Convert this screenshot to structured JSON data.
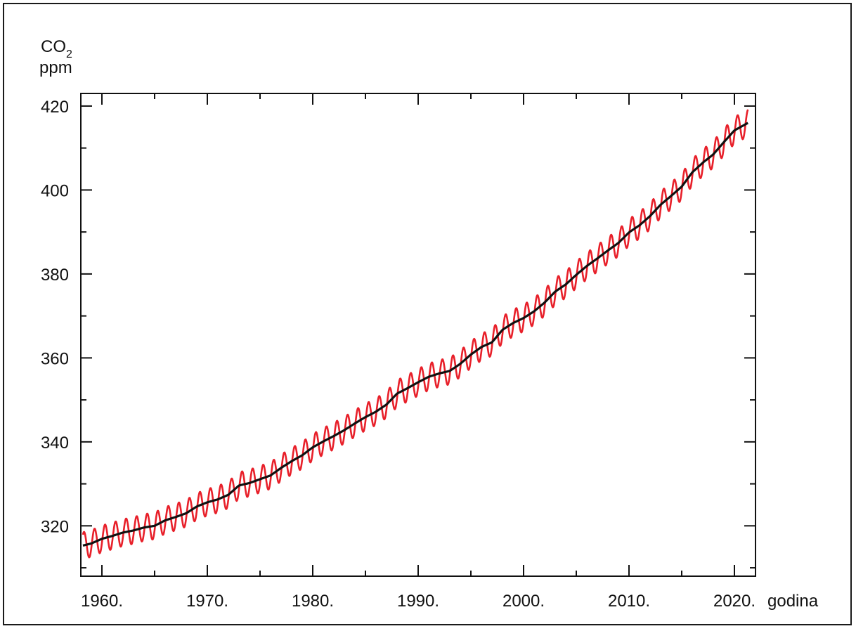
{
  "chart_data": {
    "type": "line",
    "title": "",
    "ylabel": "CO",
    "ylabel_subscript": "2",
    "yunit": "ppm",
    "xlabel": "godina",
    "xlim": [
      1958,
      2022
    ],
    "ylim": [
      308,
      423
    ],
    "x_ticks": [
      1960,
      1970,
      1980,
      1990,
      2000,
      2010,
      2020
    ],
    "x_tick_labels": [
      "1960.",
      "1970.",
      "1980.",
      "1990.",
      "2000.",
      "2010.",
      "2020."
    ],
    "y_ticks": [
      320,
      340,
      360,
      380,
      400,
      420
    ],
    "y_tick_labels": [
      "320",
      "340",
      "360",
      "380",
      "400",
      "420"
    ],
    "grid": false,
    "series": [
      {
        "role": "monthly",
        "color": "#e8202a",
        "seasonal_amplitude_ppm": 3.2,
        "x": [
          1958.2,
          1959,
          1960,
          1961,
          1962,
          1963,
          1964,
          1965,
          1966,
          1967,
          1968,
          1969,
          1970,
          1971,
          1972,
          1973,
          1974,
          1975,
          1976,
          1977,
          1978,
          1979,
          1980,
          1981,
          1982,
          1983,
          1984,
          1985,
          1986,
          1987,
          1988,
          1989,
          1990,
          1991,
          1992,
          1993,
          1994,
          1995,
          1996,
          1997,
          1998,
          1999,
          2000,
          2001,
          2002,
          2003,
          2004,
          2005,
          2006,
          2007,
          2008,
          2009,
          2010,
          2011,
          2012,
          2013,
          2014,
          2015,
          2016,
          2017,
          2018,
          2019,
          2020,
          2021.3
        ],
        "y": [
          315.3,
          315.8,
          316.9,
          317.6,
          318.4,
          318.9,
          319.6,
          320.0,
          321.3,
          322.1,
          323.0,
          324.6,
          325.6,
          326.3,
          327.4,
          329.6,
          330.2,
          331.1,
          332.0,
          333.8,
          335.4,
          336.8,
          338.7,
          340.1,
          341.4,
          342.8,
          344.4,
          345.9,
          347.2,
          348.9,
          351.5,
          352.8,
          354.2,
          355.5,
          356.3,
          356.9,
          358.6,
          360.8,
          362.6,
          363.7,
          366.7,
          368.3,
          369.5,
          371.1,
          373.2,
          375.8,
          377.5,
          379.8,
          381.9,
          383.7,
          385.6,
          387.4,
          389.9,
          391.6,
          393.8,
          396.5,
          398.6,
          400.8,
          404.2,
          406.5,
          408.5,
          411.4,
          414.2,
          416.0
        ]
      },
      {
        "role": "trend",
        "color": "#111111",
        "x": [
          1958.2,
          1959,
          1960,
          1961,
          1962,
          1963,
          1964,
          1965,
          1966,
          1967,
          1968,
          1969,
          1970,
          1971,
          1972,
          1973,
          1974,
          1975,
          1976,
          1977,
          1978,
          1979,
          1980,
          1981,
          1982,
          1983,
          1984,
          1985,
          1986,
          1987,
          1988,
          1989,
          1990,
          1991,
          1992,
          1993,
          1994,
          1995,
          1996,
          1997,
          1998,
          1999,
          2000,
          2001,
          2002,
          2003,
          2004,
          2005,
          2006,
          2007,
          2008,
          2009,
          2010,
          2011,
          2012,
          2013,
          2014,
          2015,
          2016,
          2017,
          2018,
          2019,
          2020,
          2021.3
        ],
        "y": [
          315.3,
          315.8,
          316.9,
          317.6,
          318.4,
          318.9,
          319.6,
          320.0,
          321.3,
          322.1,
          323.0,
          324.6,
          325.6,
          326.3,
          327.4,
          329.6,
          330.2,
          331.1,
          332.0,
          333.8,
          335.4,
          336.8,
          338.7,
          340.1,
          341.4,
          342.8,
          344.4,
          345.9,
          347.2,
          348.9,
          351.5,
          352.8,
          354.2,
          355.5,
          356.3,
          356.9,
          358.6,
          360.8,
          362.6,
          363.7,
          366.7,
          368.3,
          369.5,
          371.1,
          373.2,
          375.8,
          377.5,
          379.8,
          381.9,
          383.7,
          385.6,
          387.4,
          389.9,
          391.6,
          393.8,
          396.5,
          398.6,
          400.8,
          404.2,
          406.5,
          408.5,
          411.4,
          414.2,
          416.0
        ]
      }
    ]
  }
}
